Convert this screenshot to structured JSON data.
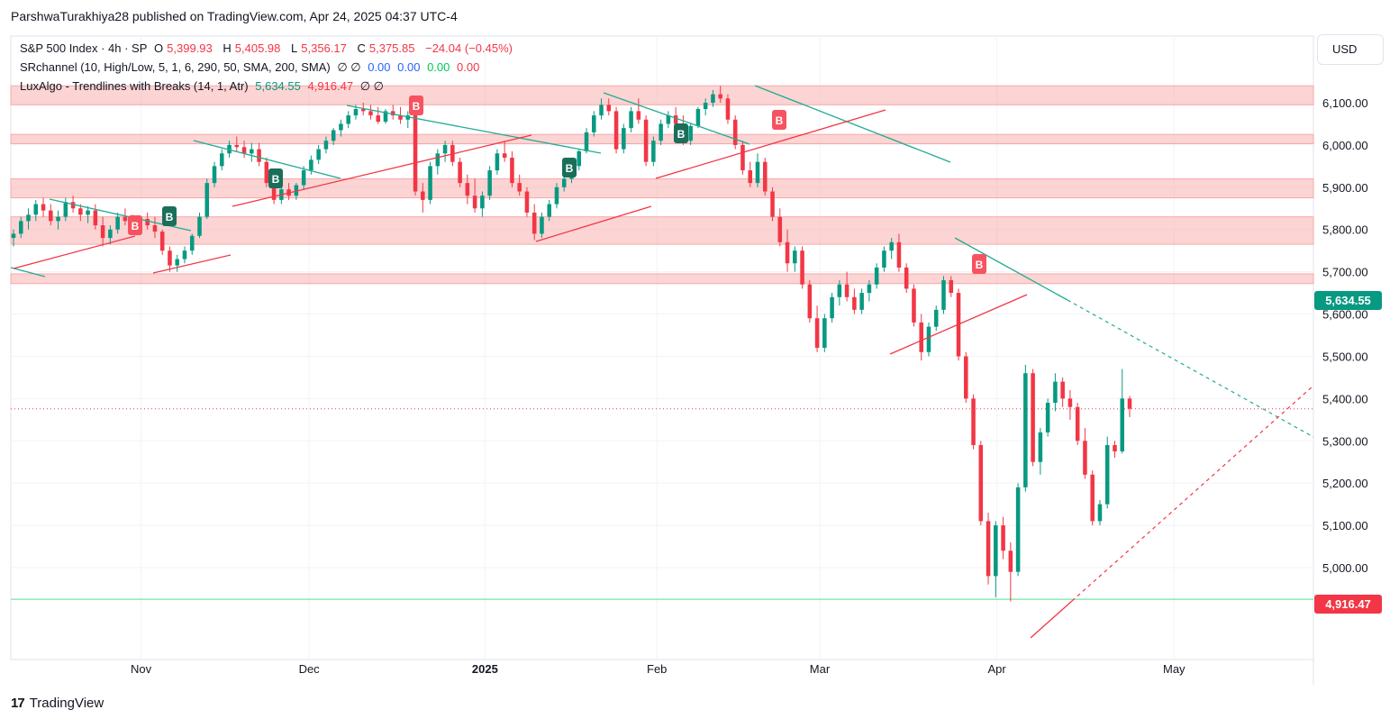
{
  "header": {
    "publish_line": "ParshwaTurakhiya28 published on TradingView.com, Apr 24, 2025 04:37 UTC-4"
  },
  "legend": {
    "symbol": "S&P 500 Index · 4h · SP",
    "o_label": "O",
    "o_value": "5,399.93",
    "h_label": "H",
    "h_value": "5,405.98",
    "l_label": "L",
    "l_value": "5,356.17",
    "c_label": "C",
    "c_value": "5,375.85",
    "change": "−24.04 (−0.45%)",
    "ind1_name": "SRchannel (10, High/Low, 5, 1, 6, 290, 50, SMA, 200, SMA)",
    "ind1_empty": "∅ ∅",
    "ind1_v1": "0.00",
    "ind1_v2": "0.00",
    "ind1_v3": "0.00",
    "ind1_v4": "0.00",
    "ind2_name": "LuxAlgo - Trendlines with Breaks (14, 1, Atr)",
    "ind2_v1": "5,634.55",
    "ind2_v2": "4,916.47",
    "ind2_empty": "∅ ∅"
  },
  "currency_button": "USD",
  "price_tags": {
    "upper": "5,634.55",
    "lower": "4,916.47"
  },
  "footer": {
    "brand": "TradingView",
    "logo": "17"
  },
  "colors": {
    "up": "#089981",
    "down": "#f23645",
    "zone": "#f7a9a8",
    "grid": "#f0f3fa",
    "trend_down": "#22ab94",
    "trend_up": "#f23645"
  },
  "chart_data": {
    "type": "candlestick",
    "title": "S&P 500 Index · 4h · SP",
    "y_ticks": [
      5000,
      5100,
      5200,
      5300,
      5400,
      5500,
      5600,
      5700,
      5800,
      5900,
      6000,
      6100
    ],
    "y_tick_labels": [
      "5,000.00",
      "5,100.00",
      "5,200.00",
      "5,300.00",
      "5,400.00",
      "5,500.00",
      "5,600.00",
      "5,700.00",
      "5,800.00",
      "5,900.00",
      "6,000.00",
      "6,100.00"
    ],
    "ylim": [
      4870,
      6150
    ],
    "x_labels": [
      {
        "label": "Nov",
        "bold": false,
        "t": 0.1
      },
      {
        "label": "Dec",
        "bold": false,
        "t": 0.229
      },
      {
        "label": "2025",
        "bold": true,
        "t": 0.364
      },
      {
        "label": "Feb",
        "bold": false,
        "t": 0.496
      },
      {
        "label": "Mar",
        "bold": false,
        "t": 0.621
      },
      {
        "label": "Apr",
        "bold": false,
        "t": 0.757
      },
      {
        "label": "May",
        "bold": false,
        "t": 0.893
      }
    ],
    "last_close": 5375.85,
    "support_resistance_zones": [
      [
        6095,
        6140
      ],
      [
        6003,
        6025
      ],
      [
        5875,
        5920
      ],
      [
        5765,
        5830
      ],
      [
        5672,
        5695
      ]
    ],
    "bottom_line": 4925,
    "ohlc": [
      [
        5780,
        5800,
        5760,
        5790
      ],
      [
        5790,
        5830,
        5780,
        5820
      ],
      [
        5820,
        5850,
        5800,
        5835
      ],
      [
        5835,
        5870,
        5820,
        5860
      ],
      [
        5860,
        5875,
        5830,
        5845
      ],
      [
        5845,
        5860,
        5810,
        5820
      ],
      [
        5820,
        5845,
        5800,
        5830
      ],
      [
        5830,
        5875,
        5820,
        5865
      ],
      [
        5865,
        5880,
        5840,
        5850
      ],
      [
        5850,
        5860,
        5820,
        5835
      ],
      [
        5835,
        5855,
        5815,
        5845
      ],
      [
        5845,
        5860,
        5800,
        5810
      ],
      [
        5810,
        5830,
        5760,
        5780
      ],
      [
        5780,
        5810,
        5765,
        5800
      ],
      [
        5800,
        5840,
        5790,
        5830
      ],
      [
        5830,
        5850,
        5810,
        5820
      ],
      [
        5820,
        5835,
        5790,
        5800
      ],
      [
        5800,
        5830,
        5795,
        5825
      ],
      [
        5825,
        5840,
        5800,
        5810
      ],
      [
        5810,
        5830,
        5780,
        5795
      ],
      [
        5795,
        5800,
        5740,
        5750
      ],
      [
        5750,
        5760,
        5700,
        5715
      ],
      [
        5715,
        5740,
        5700,
        5730
      ],
      [
        5730,
        5760,
        5720,
        5750
      ],
      [
        5750,
        5790,
        5740,
        5785
      ],
      [
        5785,
        5840,
        5780,
        5830
      ],
      [
        5830,
        5920,
        5825,
        5910
      ],
      [
        5910,
        5960,
        5900,
        5950
      ],
      [
        5950,
        5990,
        5940,
        5980
      ],
      [
        5980,
        6010,
        5970,
        6000
      ],
      [
        6000,
        6020,
        5985,
        5995
      ],
      [
        5995,
        6010,
        5970,
        5980
      ],
      [
        5980,
        6005,
        5960,
        5990
      ],
      [
        5990,
        6005,
        5950,
        5960
      ],
      [
        5960,
        5970,
        5900,
        5910
      ],
      [
        5910,
        5920,
        5860,
        5870
      ],
      [
        5870,
        5900,
        5860,
        5895
      ],
      [
        5895,
        5910,
        5870,
        5880
      ],
      [
        5880,
        5910,
        5870,
        5905
      ],
      [
        5905,
        5950,
        5895,
        5940
      ],
      [
        5940,
        5975,
        5930,
        5965
      ],
      [
        5965,
        6000,
        5955,
        5990
      ],
      [
        5990,
        6020,
        5980,
        6010
      ],
      [
        6010,
        6040,
        6000,
        6035
      ],
      [
        6035,
        6060,
        6020,
        6050
      ],
      [
        6050,
        6080,
        6040,
        6070
      ],
      [
        6070,
        6095,
        6060,
        6085
      ],
      [
        6085,
        6100,
        6070,
        6080
      ],
      [
        6080,
        6095,
        6060,
        6070
      ],
      [
        6070,
        6090,
        6050,
        6055
      ],
      [
        6055,
        6085,
        6050,
        6080
      ],
      [
        6080,
        6095,
        6060,
        6070
      ],
      [
        6070,
        6090,
        6050,
        6060
      ],
      [
        6060,
        6080,
        6040,
        6070
      ],
      [
        6070,
        6085,
        5880,
        5890
      ],
      [
        5890,
        5910,
        5840,
        5870
      ],
      [
        5870,
        5960,
        5860,
        5950
      ],
      [
        5950,
        5990,
        5930,
        5980
      ],
      [
        5980,
        6010,
        5960,
        6000
      ],
      [
        6000,
        6010,
        5950,
        5960
      ],
      [
        5960,
        5970,
        5900,
        5910
      ],
      [
        5910,
        5930,
        5860,
        5880
      ],
      [
        5880,
        5920,
        5840,
        5850
      ],
      [
        5850,
        5890,
        5830,
        5880
      ],
      [
        5880,
        5950,
        5870,
        5940
      ],
      [
        5940,
        5990,
        5930,
        5980
      ],
      [
        5980,
        6010,
        5960,
        5970
      ],
      [
        5970,
        5985,
        5900,
        5910
      ],
      [
        5910,
        5930,
        5880,
        5890
      ],
      [
        5890,
        5900,
        5830,
        5840
      ],
      [
        5840,
        5860,
        5775,
        5790
      ],
      [
        5790,
        5840,
        5780,
        5830
      ],
      [
        5830,
        5870,
        5820,
        5860
      ],
      [
        5860,
        5910,
        5850,
        5900
      ],
      [
        5900,
        5930,
        5890,
        5920
      ],
      [
        5920,
        5960,
        5910,
        5950
      ],
      [
        5950,
        5990,
        5940,
        5985
      ],
      [
        5985,
        6040,
        5980,
        6030
      ],
      [
        6030,
        6080,
        6020,
        6070
      ],
      [
        6070,
        6110,
        6060,
        6095
      ],
      [
        6095,
        6110,
        6070,
        6080
      ],
      [
        6080,
        6090,
        5980,
        5990
      ],
      [
        5990,
        6050,
        5980,
        6040
      ],
      [
        6040,
        6090,
        6030,
        6080
      ],
      [
        6080,
        6110,
        6050,
        6060
      ],
      [
        6060,
        6070,
        5950,
        5960
      ],
      [
        5960,
        6020,
        5950,
        6010
      ],
      [
        6010,
        6060,
        6000,
        6050
      ],
      [
        6050,
        6080,
        6040,
        6070
      ],
      [
        6070,
        6090,
        6040,
        6050
      ],
      [
        6050,
        6070,
        6000,
        6010
      ],
      [
        6010,
        6050,
        6000,
        6045
      ],
      [
        6045,
        6090,
        6040,
        6085
      ],
      [
        6085,
        6110,
        6070,
        6100
      ],
      [
        6100,
        6130,
        6090,
        6120
      ],
      [
        6120,
        6140,
        6100,
        6110
      ],
      [
        6110,
        6120,
        6050,
        6060
      ],
      [
        6060,
        6070,
        5990,
        6000
      ],
      [
        6000,
        6010,
        5930,
        5940
      ],
      [
        5940,
        5960,
        5900,
        5910
      ],
      [
        5910,
        5980,
        5900,
        5960
      ],
      [
        5960,
        5970,
        5880,
        5890
      ],
      [
        5890,
        5900,
        5820,
        5830
      ],
      [
        5830,
        5850,
        5760,
        5770
      ],
      [
        5770,
        5800,
        5700,
        5720
      ],
      [
        5720,
        5760,
        5700,
        5750
      ],
      [
        5750,
        5760,
        5660,
        5670
      ],
      [
        5670,
        5680,
        5580,
        5590
      ],
      [
        5590,
        5620,
        5510,
        5520
      ],
      [
        5520,
        5600,
        5510,
        5590
      ],
      [
        5590,
        5650,
        5580,
        5640
      ],
      [
        5640,
        5680,
        5620,
        5670
      ],
      [
        5670,
        5700,
        5630,
        5640
      ],
      [
        5640,
        5660,
        5600,
        5610
      ],
      [
        5610,
        5660,
        5600,
        5650
      ],
      [
        5650,
        5680,
        5630,
        5670
      ],
      [
        5670,
        5720,
        5660,
        5710
      ],
      [
        5710,
        5760,
        5700,
        5750
      ],
      [
        5750,
        5780,
        5730,
        5770
      ],
      [
        5770,
        5790,
        5700,
        5710
      ],
      [
        5710,
        5720,
        5650,
        5660
      ],
      [
        5660,
        5670,
        5570,
        5580
      ],
      [
        5580,
        5600,
        5490,
        5510
      ],
      [
        5510,
        5580,
        5500,
        5570
      ],
      [
        5570,
        5620,
        5560,
        5610
      ],
      [
        5610,
        5690,
        5600,
        5680
      ],
      [
        5680,
        5690,
        5640,
        5650
      ],
      [
        5650,
        5660,
        5490,
        5500
      ],
      [
        5500,
        5510,
        5390,
        5400
      ],
      [
        5400,
        5410,
        5280,
        5290
      ],
      [
        5290,
        5300,
        5100,
        5110
      ],
      [
        5110,
        5130,
        4960,
        4980
      ],
      [
        4980,
        5110,
        4930,
        5100
      ],
      [
        5100,
        5120,
        5020,
        5040
      ],
      [
        5040,
        5060,
        4920,
        4990
      ],
      [
        4990,
        5200,
        4980,
        5190
      ],
      [
        5190,
        5480,
        5180,
        5460
      ],
      [
        5460,
        5470,
        5240,
        5250
      ],
      [
        5250,
        5330,
        5220,
        5320
      ],
      [
        5320,
        5400,
        5310,
        5390
      ],
      [
        5390,
        5460,
        5370,
        5440
      ],
      [
        5440,
        5450,
        5380,
        5400
      ],
      [
        5400,
        5420,
        5350,
        5380
      ],
      [
        5380,
        5390,
        5290,
        5300
      ],
      [
        5300,
        5330,
        5210,
        5220
      ],
      [
        5220,
        5230,
        5100,
        5110
      ],
      [
        5110,
        5160,
        5100,
        5150
      ],
      [
        5150,
        5310,
        5140,
        5290
      ],
      [
        5290,
        5300,
        5260,
        5275
      ],
      [
        5275,
        5470,
        5270,
        5400
      ],
      [
        5399.93,
        5405.98,
        5356.17,
        5375.85
      ]
    ]
  }
}
